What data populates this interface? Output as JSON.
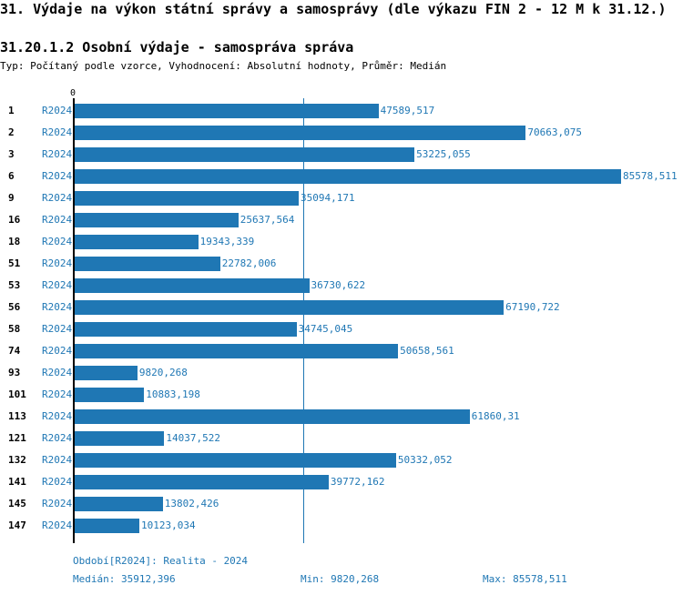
{
  "header": {
    "title": "31. Výdaje na výkon státní správy a samosprávy (dle výkazu FIN 2 - 12 M k 31.12.)",
    "subtitle": "31.20.1.2 Osobní výdaje - samospráva správa",
    "info": "Typ: Počítaný podle vzorce, Vyhodnocení: Absolutní hodnoty, Průměr: Medián"
  },
  "chart_data": {
    "type": "bar",
    "orientation": "horizontal",
    "xlim": [
      0,
      85578.511
    ],
    "x_tick_label": "0",
    "categories": [
      "1",
      "2",
      "3",
      "6",
      "9",
      "16",
      "18",
      "51",
      "53",
      "56",
      "58",
      "74",
      "93",
      "101",
      "113",
      "121",
      "132",
      "141",
      "145",
      "147"
    ],
    "series": [
      {
        "name": "R2024",
        "values": [
          47589.517,
          70663.075,
          53225.055,
          85578.511,
          35094.171,
          25637.564,
          19343.339,
          22782.006,
          36730.622,
          67190.722,
          34745.045,
          50658.561,
          9820.268,
          10883.198,
          61860.31,
          14037.522,
          50332.052,
          39772.162,
          13802.426,
          10123.034
        ],
        "labels": [
          "47589,517",
          "70663,075",
          "53225,055",
          "85578,511",
          "35094,171",
          "25637,564",
          "19343,339",
          "22782,006",
          "36730,622",
          "67190,722",
          "34745,045",
          "50658,561",
          "9820,268",
          "10883,198",
          "61860,31",
          "14037,522",
          "50332,052",
          "39772,162",
          "13802,426",
          "10123,034"
        ]
      }
    ],
    "median_line": 35912.396,
    "bar_color": "#1f77b4"
  },
  "footer": {
    "period": "Období[R2024]: Realita - 2024",
    "median": "Medián: 35912,396",
    "min": "Min: 9820,268",
    "max": "Max: 85578,511"
  }
}
